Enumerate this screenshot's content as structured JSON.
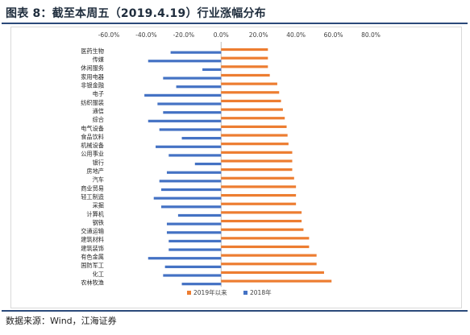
{
  "figure": {
    "title": "图表 8：截至本周五（2019.4.19）行业涨幅分布",
    "source": "数据来源：Wind，江海证券"
  },
  "chart_data": {
    "type": "bar",
    "orientation": "horizontal",
    "xlim": [
      -0.6,
      0.8
    ],
    "xticks": [
      "-60.0%",
      "-40.0%",
      "-20.0%",
      "0.0%",
      "20.0%",
      "40.0%",
      "60.0%",
      "80.0%"
    ],
    "xtick_values": [
      -0.6,
      -0.4,
      -0.2,
      0.0,
      0.2,
      0.4,
      0.6,
      0.8
    ],
    "grid": false,
    "legend": "bottom",
    "colors": {
      "2019年以来": "#ed7d31",
      "2018年": "#4472c4"
    },
    "categories": [
      "医药生物",
      "传媒",
      "休闲服务",
      "家用电器",
      "非银金融",
      "电子",
      "纺织服装",
      "通信",
      "综合",
      "电气设备",
      "食品饮料",
      "机械设备",
      "公用事业",
      "银行",
      "房地产",
      "汽车",
      "商业贸易",
      "轻工制造",
      "采掘",
      "计算机",
      "钢铁",
      "交通运输",
      "建筑材料",
      "建筑装饰",
      "有色金属",
      "国防军工",
      "化工",
      "农林牧渔"
    ],
    "series": [
      {
        "name": "2019年以来",
        "color": "#ed7d31",
        "values": [
          0.25,
          0.25,
          0.25,
          0.26,
          0.3,
          0.31,
          0.32,
          0.33,
          0.34,
          0.35,
          0.355,
          0.36,
          0.38,
          0.38,
          0.38,
          0.39,
          0.4,
          0.4,
          0.4,
          0.43,
          0.43,
          0.44,
          0.47,
          0.47,
          0.51,
          0.51,
          0.55,
          0.59
        ]
      },
      {
        "name": "2018年",
        "color": "#4472c4",
        "values": [
          -0.27,
          -0.39,
          -0.1,
          -0.31,
          -0.24,
          -0.41,
          -0.34,
          -0.31,
          -0.39,
          -0.33,
          -0.21,
          -0.35,
          -0.28,
          -0.14,
          -0.29,
          -0.33,
          -0.32,
          -0.36,
          -0.32,
          -0.23,
          -0.29,
          -0.29,
          -0.28,
          -0.28,
          -0.39,
          -0.3,
          -0.31,
          -0.21
        ]
      }
    ]
  }
}
